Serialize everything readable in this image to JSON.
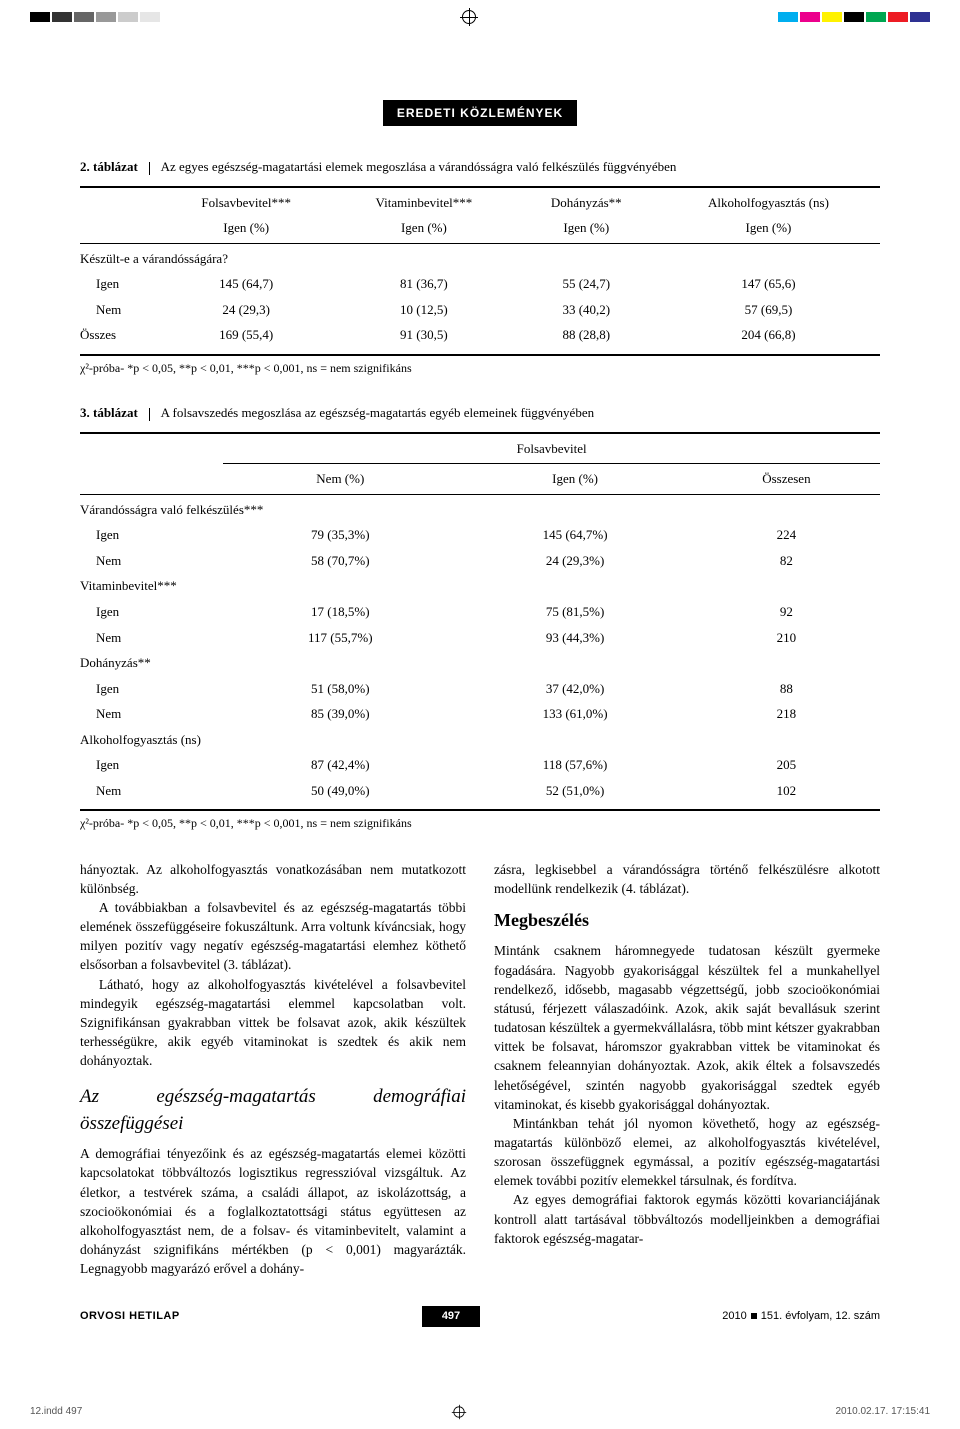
{
  "print_bars": {
    "grays": [
      "#000000",
      "#333333",
      "#666666",
      "#999999",
      "#cccccc",
      "#e6e6e6"
    ],
    "colors": [
      "#00aeef",
      "#ec008c",
      "#fff200",
      "#000000",
      "#00a651",
      "#ed1c24",
      "#2e3192"
    ]
  },
  "section_header": "EREDETI KÖZLEMÉNYEK",
  "table2": {
    "caption_num": "2. táblázat",
    "caption_text": "Az egyes egészség-magatartási elemek megoszlása a várandósságra való felkészülés függvényében",
    "col_headers_top": [
      "Folsavbevitel***",
      "Vitaminbevitel***",
      "Dohányzás**",
      "Alkoholfogyasztás (ns)"
    ],
    "col_headers_sub": [
      "Igen (%)",
      "Igen (%)",
      "Igen (%)",
      "Igen (%)"
    ],
    "group_label": "Készült-e a várandósságára?",
    "rows": [
      {
        "label": "Igen",
        "cells": [
          "145 (64,7)",
          "81 (36,7)",
          "55 (24,7)",
          "147 (65,6)"
        ]
      },
      {
        "label": "Nem",
        "cells": [
          "24 (29,3)",
          "10 (12,5)",
          "33 (40,2)",
          "57 (69,5)"
        ]
      },
      {
        "label": "Összes",
        "cells": [
          "169 (55,4)",
          "91 (30,5)",
          "88 (28,8)",
          "204 (66,8)"
        ]
      }
    ],
    "footnote": "χ²-próba- *p < 0,05, **p < 0,01, ***p < 0,001, ns = nem szignifikáns"
  },
  "table3": {
    "caption_num": "3. táblázat",
    "caption_text": "A folsavszedés megoszlása az egészség-magatartás egyéb elemeinek függvényében",
    "spanner": "Folsavbevitel",
    "col_headers": [
      "Nem (%)",
      "Igen (%)",
      "Összesen"
    ],
    "groups": [
      {
        "label": "Várandósságra való felkészülés***",
        "rows": [
          {
            "label": "Igen",
            "cells": [
              "79 (35,3%)",
              "145 (64,7%)",
              "224"
            ]
          },
          {
            "label": "Nem",
            "cells": [
              "58 (70,7%)",
              "24 (29,3%)",
              "82"
            ]
          }
        ]
      },
      {
        "label": "Vitaminbevitel***",
        "rows": [
          {
            "label": "Igen",
            "cells": [
              "17 (18,5%)",
              "75 (81,5%)",
              "92"
            ]
          },
          {
            "label": "Nem",
            "cells": [
              "117 (55,7%)",
              "93 (44,3%)",
              "210"
            ]
          }
        ]
      },
      {
        "label": "Dohányzás**",
        "rows": [
          {
            "label": "Igen",
            "cells": [
              "51 (58,0%)",
              "37 (42,0%)",
              "88"
            ]
          },
          {
            "label": "Nem",
            "cells": [
              "85 (39,0%)",
              "133 (61,0%)",
              "218"
            ]
          }
        ]
      },
      {
        "label": "Alkoholfogyasztás (ns)",
        "rows": [
          {
            "label": "Igen",
            "cells": [
              "87 (42,4%)",
              "118 (57,6%)",
              "205"
            ]
          },
          {
            "label": "Nem",
            "cells": [
              "50 (49,0%)",
              "52 (51,0%)",
              "102"
            ]
          }
        ]
      }
    ],
    "footnote": "χ²-próba- *p < 0,05, **p < 0,01, ***p < 0,001, ns = nem szignifikáns"
  },
  "body": {
    "left": {
      "p1": "hányoztak. Az alkoholfogyasztás vonatkozásában nem mutatkozott különbség.",
      "p2": "A továbbiakban a folsavbevitel és az egészség-magatartás többi elemének összefüggéseire fokuszáltunk. Arra voltunk kíváncsiak, hogy milyen pozitív vagy negatív egészség-magatartási elemhez köthető elsősorban a folsavbevitel (3. táblázat).",
      "p3": "Látható, hogy az alkoholfogyasztás kivételével a folsavbevitel mindegyik egészség-magatartási elemmel kapcsolatban volt. Szignifikánsan gyakrabban vittek be folsavat azok, akik készültek terhességükre, akik egyéb vitaminokat is szedtek és akik nem dohányoztak.",
      "h": "Az egészség-magatartás demográfiai összefüggései",
      "p4": "A demográfiai tényezőink és az egészség-magatartás elemei közötti kapcsolatokat többváltozós logisztikus regresszióval vizsgáltuk. Az életkor, a testvérek száma, a családi állapot, az iskolázottság, a szocioökonómiai és a foglalkoztatottsági státus együttesen az alkoholfogyasztást nem, de a folsav- és vitaminbevitelt, valamint a dohányzást szignifikáns mértékben (p < 0,001) magyarázták. Legnagyobb magyarázó erővel a dohány-"
    },
    "right": {
      "p1": "zásra, legkisebbel a várandósságra történő felkészülésre alkotott modellünk rendelkezik (4. táblázat).",
      "h": "Megbeszélés",
      "p2": "Mintánk csaknem háromnegyede tudatosan készült gyermeke fogadására. Nagyobb gyakorisággal készültek fel a munkahellyel rendelkező, idősebb, magasabb végzettségű, jobb szocioökonómiai státusú, férjezett válaszadóink. Azok, akik saját bevallásuk szerint tudatosan készültek a gyermekvállalásra, több mint kétszer gyakrabban vittek be folsavat, háromszor gyakrabban vittek be vitaminokat és csaknem feleannyian dohányoztak. Azok, akik éltek a folsavszedés lehetőségével, szintén nagyobb gyakorisággal szedtek egyéb vitaminokat, és kisebb gyakorisággal dohányoztak.",
      "p3": "Mintánkban tehát jól nyomon követhető, hogy az egészség-magatartás különböző elemei, az alkoholfogyasztás kivételével, szorosan összefüggnek egymással, a pozitív egészség-magatartási elemek további pozitív elemekkel társulnak, és fordítva.",
      "p4": "Az egyes demográfiai faktorok egymás közötti kovarianciájának kontroll alatt tartásával többváltozós modelljeinkben a demográfiai faktorok egészség-magatar-"
    }
  },
  "footer": {
    "journal": "ORVOSI HETILAP",
    "page": "497",
    "year": "2010",
    "issue": "151. évfolyam, 12. szám"
  },
  "printfoot": {
    "left": "12.indd   497",
    "right": "2010.02.17.   17:15:41"
  }
}
